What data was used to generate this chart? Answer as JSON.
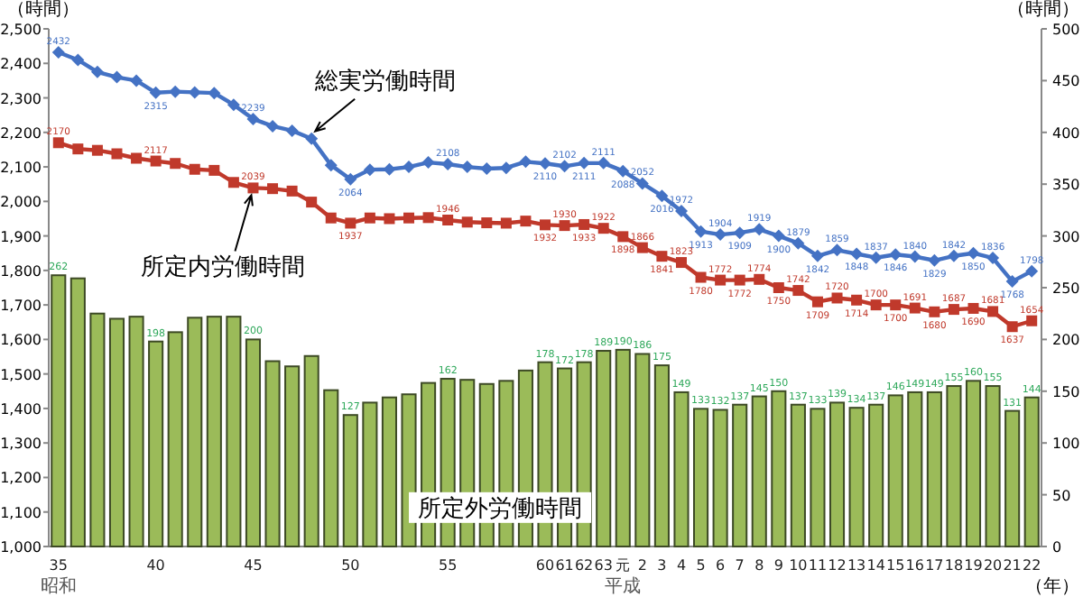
{
  "chart_data": {
    "type": "bar",
    "annotations": [
      "昭和",
      "平成"
    ],
    "ylabel": "（時間）",
    "y2label": "（時間）",
    "xlabel": "（年）",
    "categories": [
      "35",
      null,
      null,
      null,
      null,
      "40",
      null,
      null,
      null,
      null,
      "45",
      null,
      null,
      null,
      null,
      "50",
      null,
      null,
      null,
      null,
      "55",
      null,
      null,
      null,
      null,
      "60",
      "61",
      "62",
      "63",
      "元",
      "2",
      "3",
      "4",
      "5",
      "6",
      "7",
      "8",
      "9",
      "10",
      "11",
      "12",
      "13",
      "14",
      "15",
      "16",
      "17",
      "18",
      "19",
      "20",
      "21",
      "22"
    ],
    "ylim": [
      1000,
      2500
    ],
    "yticks": [
      {
        "value": 1000,
        "label": "1,000"
      },
      {
        "value": 1100,
        "label": "1,100"
      },
      {
        "value": 1200,
        "label": "1,200"
      },
      {
        "value": 1300,
        "label": "1,300"
      },
      {
        "value": 1400,
        "label": "1,400"
      },
      {
        "value": 1500,
        "label": "1,500"
      },
      {
        "value": 1600,
        "label": "1,600"
      },
      {
        "value": 1700,
        "label": "1,700"
      },
      {
        "value": 1800,
        "label": "1,800"
      },
      {
        "value": 1900,
        "label": "1,900"
      },
      {
        "value": 2000,
        "label": "2,000"
      },
      {
        "value": 2100,
        "label": "2,100"
      },
      {
        "value": 2200,
        "label": "2,200"
      },
      {
        "value": 2300,
        "label": "2,300"
      },
      {
        "value": 2400,
        "label": "2,400"
      },
      {
        "value": 2500,
        "label": "2,500"
      }
    ],
    "y2lim": [
      0,
      500
    ],
    "y2ticks": [
      0,
      50,
      100,
      150,
      200,
      250,
      300,
      350,
      400,
      450,
      500
    ],
    "series": [
      {
        "name": "所定外労働時間",
        "axis": "y2",
        "color": "#9bbb59",
        "values": [
          262,
          259,
          225,
          220,
          222,
          198,
          207,
          221,
          222,
          222,
          200,
          179,
          174,
          184,
          151,
          127,
          139,
          144,
          147,
          158,
          162,
          161,
          157,
          160,
          170,
          178,
          172,
          178,
          189,
          190,
          186,
          175,
          149,
          133,
          132,
          137,
          145,
          150,
          137,
          133,
          139,
          134,
          137,
          146,
          149,
          149,
          155,
          160,
          155,
          131,
          144
        ],
        "value_labels": [
          "262",
          null,
          null,
          null,
          null,
          "198",
          null,
          null,
          null,
          null,
          "200",
          null,
          null,
          null,
          null,
          "127",
          null,
          null,
          null,
          null,
          "162",
          null,
          null,
          null,
          null,
          "178",
          "172",
          "178",
          "189",
          "190",
          "186",
          "175",
          "149",
          "133",
          "132",
          "137",
          "145",
          "150",
          "137",
          "133",
          "139",
          "134",
          "137",
          "146",
          "149",
          "149",
          "155",
          "160",
          "155",
          "131",
          "144"
        ]
      },
      {
        "name": "総実労働時間",
        "type": "line",
        "axis": "y",
        "color": "#4472c4",
        "marker": "diamond",
        "values": [
          2432,
          2410,
          2375,
          2360,
          2350,
          2315,
          2318,
          2316,
          2314,
          2280,
          2239,
          2218,
          2205,
          2182,
          2105,
          2064,
          2092,
          2093,
          2100,
          2113,
          2108,
          2100,
          2095,
          2097,
          2115,
          2110,
          2102,
          2111,
          2111,
          2088,
          2052,
          2016,
          1972,
          1913,
          1904,
          1909,
          1919,
          1900,
          1879,
          1842,
          1859,
          1848,
          1837,
          1846,
          1840,
          1829,
          1842,
          1850,
          1836,
          1768,
          1798
        ],
        "value_labels": [
          "2432",
          null,
          null,
          null,
          null,
          "2315",
          null,
          null,
          null,
          null,
          "2239",
          null,
          null,
          null,
          null,
          "2064",
          null,
          null,
          null,
          null,
          "2108",
          null,
          null,
          null,
          null,
          "2110",
          "2102",
          "2111",
          "2111",
          "2088",
          "2052",
          "2016",
          "1972",
          "1913",
          "1904",
          "1909",
          "1919",
          "1900",
          "1879",
          "1842",
          "1859",
          "1848",
          "1837",
          "1846",
          "1840",
          "1829",
          "1842",
          "1850",
          "1836",
          "1768",
          "1798"
        ]
      },
      {
        "name": "所定内労働時間",
        "type": "line",
        "axis": "y",
        "color": "#c0392b",
        "marker": "square",
        "values": [
          2170,
          2152,
          2148,
          2138,
          2125,
          2117,
          2110,
          2093,
          2090,
          2055,
          2039,
          2037,
          2030,
          1998,
          1952,
          1937,
          1952,
          1950,
          1952,
          1953,
          1946,
          1940,
          1938,
          1937,
          1943,
          1932,
          1930,
          1933,
          1922,
          1898,
          1866,
          1841,
          1823,
          1780,
          1772,
          1772,
          1774,
          1750,
          1742,
          1709,
          1720,
          1714,
          1700,
          1700,
          1691,
          1680,
          1687,
          1690,
          1681,
          1637,
          1654
        ],
        "value_labels": [
          "2170",
          null,
          null,
          null,
          null,
          "2117",
          null,
          null,
          null,
          null,
          "2039",
          null,
          null,
          null,
          null,
          "1937",
          null,
          null,
          null,
          null,
          "1946",
          null,
          null,
          null,
          null,
          "1932",
          "1930",
          "1933",
          "1922",
          "1898",
          "1866",
          "1841",
          "1823",
          "1780",
          "1772",
          "1772",
          "1774",
          "1750",
          "1742",
          "1709",
          "1720",
          "1714",
          "1700",
          "1700",
          "1691",
          "1680",
          "1687",
          "1690",
          "1681",
          "1637",
          "1654"
        ]
      }
    ]
  }
}
